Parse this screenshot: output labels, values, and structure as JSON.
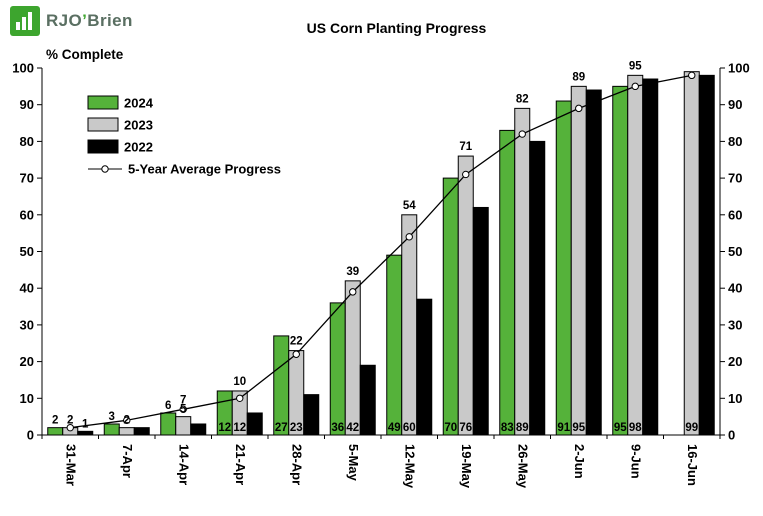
{
  "logo": {
    "rjo": "RJO",
    "apos": "’",
    "brien": "Brien"
  },
  "chart_data": {
    "type": "bar",
    "title": "US Corn Planting Progress",
    "ylabel": "% Complete",
    "ylim": [
      0,
      100
    ],
    "yticks": [
      0,
      10,
      20,
      30,
      40,
      50,
      60,
      70,
      80,
      90,
      100
    ],
    "grid": false,
    "legend_position": "top-left-inside",
    "categories": [
      "31-Mar",
      "7-Apr",
      "14-Apr",
      "21-Apr",
      "28-Apr",
      "5-May",
      "12-May",
      "19-May",
      "26-May",
      "2-Jun",
      "9-Jun",
      "16-Jun"
    ],
    "series": [
      {
        "name": "2024",
        "color": "#55b23a",
        "values": [
          2,
          3,
          6,
          12,
          27,
          36,
          49,
          70,
          83,
          91,
          95,
          null
        ],
        "labels": [
          "2",
          "3",
          "6",
          "12",
          "27",
          "36",
          "49",
          "70",
          "83",
          "91",
          "95",
          null
        ]
      },
      {
        "name": "2023",
        "color": "#c9c9c9",
        "values": [
          2,
          2,
          5,
          12,
          23,
          42,
          60,
          76,
          89,
          95,
          98,
          99
        ],
        "labels": [
          "2",
          "2",
          "5",
          "12",
          "23",
          "42",
          "60",
          "76",
          "89",
          "95",
          "98",
          "99"
        ]
      },
      {
        "name": "2022",
        "color": "#000000",
        "values": [
          1,
          2,
          3,
          6,
          11,
          19,
          37,
          62,
          80,
          94,
          97,
          98
        ],
        "labels": [
          "1",
          null,
          null,
          null,
          null,
          null,
          null,
          null,
          null,
          null,
          null,
          null
        ]
      }
    ],
    "line": {
      "name": "5-Year Average Progress",
      "color": "#000000",
      "marker_fill": "#ffffff",
      "values": [
        2,
        4,
        7,
        10,
        22,
        39,
        54,
        71,
        82,
        89,
        95,
        98
      ],
      "labels": [
        null,
        null,
        "7",
        "10",
        "22",
        "39",
        "54",
        "71",
        "82",
        "89",
        "95",
        null
      ]
    }
  }
}
